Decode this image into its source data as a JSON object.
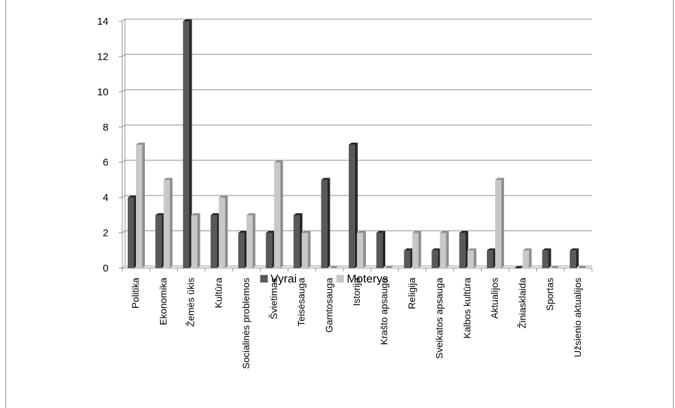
{
  "colors": {
    "vyrai": "#595959",
    "vyrai_dark": "#262626",
    "moterys": "#c8c8c8",
    "moterys_dark": "#8f8f8f",
    "grid": "#8c8c8c"
  },
  "chart_data": {
    "type": "bar",
    "title": "",
    "xlabel": "",
    "ylabel": "",
    "ylim": [
      0,
      14
    ],
    "yticks": [
      0,
      2,
      4,
      6,
      8,
      10,
      12,
      14
    ],
    "grid": true,
    "legend_position": "bottom",
    "categories": [
      "Politika",
      "Ekonomika",
      "Žemės ūkis",
      "Kultūra",
      "Socialinės problemos",
      "Švietimas",
      "Teisėsauga",
      "Gamtosauga",
      "Istorija",
      "Krašto apsauga",
      "Religija",
      "Sveikatos apsauga",
      "Kalbos kultūra",
      "Aktualijos",
      "Žiniasklaida",
      "Sportas",
      "Užsienio aktualijos"
    ],
    "series": [
      {
        "name": "Vyrai",
        "values": [
          4,
          3,
          14,
          3,
          2,
          2,
          3,
          5,
          7,
          2,
          1,
          1,
          2,
          1,
          0,
          1,
          1
        ]
      },
      {
        "name": "Moterys",
        "values": [
          7,
          5,
          3,
          4,
          3,
          6,
          2,
          0,
          2,
          0,
          2,
          2,
          1,
          5,
          1,
          0,
          0
        ]
      }
    ]
  }
}
